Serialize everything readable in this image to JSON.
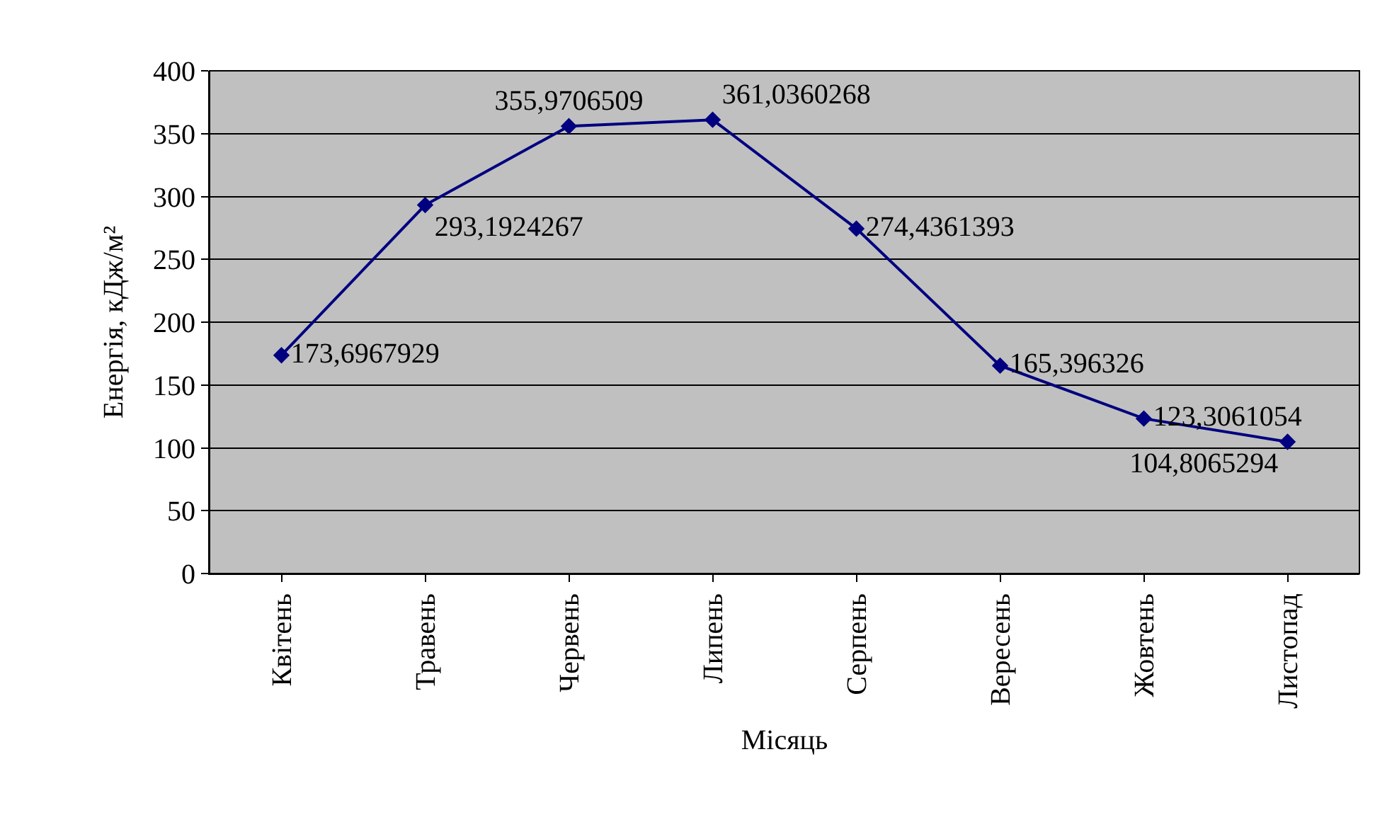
{
  "chart_data": {
    "type": "line",
    "xlabel": "Місяць",
    "ylabel": "Енергія, кДж/м²",
    "categories": [
      "Квітень",
      "Травень",
      "Червень",
      "Липень",
      "Серпень",
      "Вересень",
      "Жовтень",
      "Листопад"
    ],
    "series": [
      {
        "color": "#000080",
        "values": [
          173.6967929,
          293.1924267,
          355.9706509,
          361.0360268,
          274.4361393,
          165.396326,
          123.3061054,
          104.8065294
        ],
        "value_labels": [
          "173,6967929",
          "293,1924267",
          "355,9706509",
          "361,0360268",
          "274,4361393",
          "165,396326",
          "123,3061054",
          "104,8065294"
        ]
      }
    ],
    "ylim": [
      0,
      400
    ],
    "yticks": [
      0,
      50,
      100,
      150,
      200,
      250,
      300,
      350,
      400
    ],
    "grid": "y",
    "marker": "diamond",
    "line_style": "solid"
  }
}
